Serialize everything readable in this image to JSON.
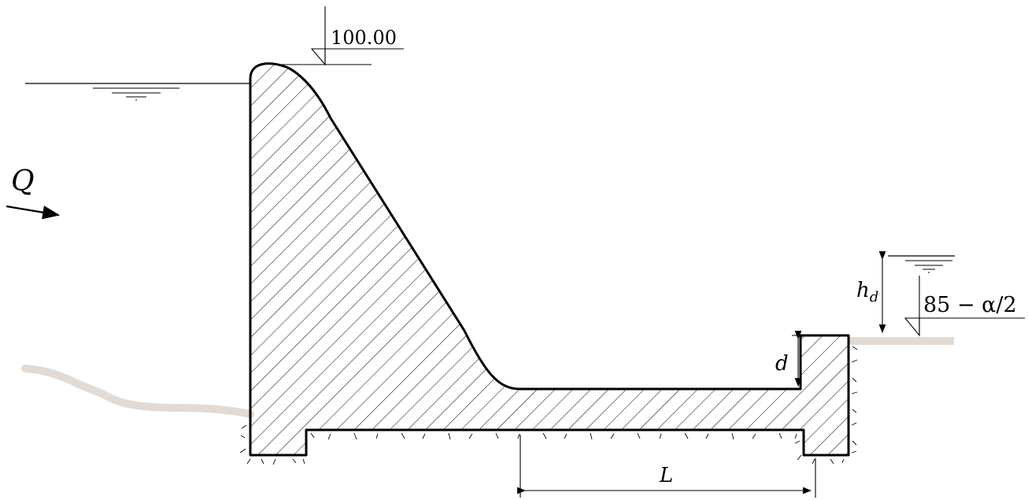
{
  "labels": {
    "crest_elevation": "100.00",
    "flow": "Q",
    "tailwater_depth": "h",
    "tailwater_depth_sub": "d",
    "tailwater_elevation": "85 − α/2",
    "step_height": "d",
    "apron_length": "L"
  },
  "colors": {
    "ground": "#e3dad3",
    "line": "#000000"
  }
}
